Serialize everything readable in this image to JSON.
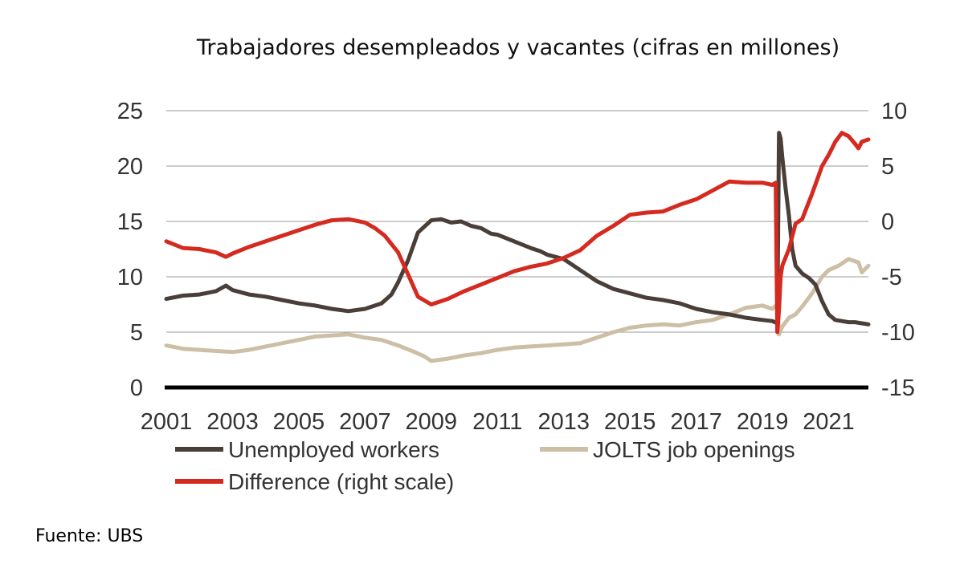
{
  "chart_data": {
    "type": "line",
    "title": "Trabajadores desempleados y vacantes (cifras en millones)",
    "x_ticks": [
      "2001",
      "2003",
      "2005",
      "2007",
      "2009",
      "2011",
      "2013",
      "2015",
      "2017",
      "2019",
      "2021"
    ],
    "xlim": [
      2001,
      2022.2
    ],
    "ylim_left": [
      0,
      25
    ],
    "y_ticks_left": [
      "0",
      "5",
      "10",
      "15",
      "20",
      "25"
    ],
    "ylim_right": [
      -15,
      10
    ],
    "y_ticks_right": [
      "-15",
      "-10",
      "-5",
      "0",
      "5",
      "10"
    ],
    "grid": true,
    "series": [
      {
        "name": "Unemployed workers",
        "axis": "left",
        "color": "#4a3f38",
        "x": [
          2001.0,
          2001.5,
          2002.0,
          2002.5,
          2002.8,
          2003.0,
          2003.5,
          2004.0,
          2004.5,
          2005.0,
          2005.5,
          2006.0,
          2006.5,
          2007.0,
          2007.5,
          2007.8,
          2008.0,
          2008.3,
          2008.6,
          2009.0,
          2009.3,
          2009.6,
          2009.9,
          2010.2,
          2010.5,
          2010.8,
          2011.0,
          2011.5,
          2012.0,
          2012.3,
          2012.5,
          2013.0,
          2013.5,
          2014.0,
          2014.5,
          2015.0,
          2015.5,
          2016.0,
          2016.5,
          2017.0,
          2017.5,
          2018.0,
          2018.5,
          2019.0,
          2019.3,
          2019.45,
          2019.5,
          2019.55,
          2019.6,
          2019.7,
          2019.8,
          2019.9,
          2020.0,
          2020.2,
          2020.4,
          2020.6,
          2020.8,
          2021.0,
          2021.2,
          2021.4,
          2021.6,
          2021.8,
          2022.0,
          2022.2
        ],
        "y": [
          8.0,
          8.3,
          8.4,
          8.7,
          9.2,
          8.8,
          8.4,
          8.2,
          7.9,
          7.6,
          7.4,
          7.1,
          6.9,
          7.1,
          7.6,
          8.4,
          9.5,
          11.5,
          14.0,
          15.1,
          15.2,
          14.9,
          15.0,
          14.6,
          14.4,
          13.9,
          13.8,
          13.2,
          12.6,
          12.3,
          12.0,
          11.6,
          10.6,
          9.6,
          8.9,
          8.5,
          8.1,
          7.9,
          7.6,
          7.1,
          6.8,
          6.6,
          6.3,
          6.1,
          6.0,
          5.8,
          23.0,
          22.5,
          20.8,
          18.0,
          15.5,
          12.5,
          11.0,
          10.3,
          9.9,
          9.3,
          7.8,
          6.6,
          6.1,
          6.0,
          5.9,
          5.9,
          5.8,
          5.7
        ]
      },
      {
        "name": "JOLTS job openings",
        "axis": "left",
        "color": "#cdbfa5",
        "x": [
          2001.0,
          2001.5,
          2002.0,
          2002.5,
          2003.0,
          2003.5,
          2004.0,
          2004.5,
          2005.0,
          2005.5,
          2006.0,
          2006.5,
          2007.0,
          2007.5,
          2008.0,
          2008.5,
          2008.8,
          2009.0,
          2009.5,
          2010.0,
          2010.5,
          2011.0,
          2011.5,
          2012.0,
          2012.5,
          2013.0,
          2013.5,
          2014.0,
          2014.5,
          2015.0,
          2015.5,
          2016.0,
          2016.5,
          2017.0,
          2017.5,
          2018.0,
          2018.5,
          2019.0,
          2019.3,
          2019.45,
          2019.5,
          2019.6,
          2019.8,
          2020.0,
          2020.2,
          2020.5,
          2020.8,
          2021.0,
          2021.3,
          2021.6,
          2021.9,
          2022.0,
          2022.2
        ],
        "y": [
          3.8,
          3.5,
          3.4,
          3.3,
          3.2,
          3.4,
          3.7,
          4.0,
          4.3,
          4.6,
          4.7,
          4.8,
          4.5,
          4.3,
          3.8,
          3.2,
          2.8,
          2.4,
          2.6,
          2.9,
          3.1,
          3.4,
          3.6,
          3.7,
          3.8,
          3.9,
          4.0,
          4.5,
          5.0,
          5.4,
          5.6,
          5.7,
          5.6,
          5.9,
          6.1,
          6.6,
          7.2,
          7.4,
          7.1,
          7.5,
          4.8,
          5.5,
          6.3,
          6.6,
          7.3,
          8.5,
          10.0,
          10.6,
          11.0,
          11.6,
          11.3,
          10.4,
          11.0
        ]
      },
      {
        "name": "Difference (right scale)",
        "axis": "right",
        "color": "#d42a20",
        "x": [
          2001.0,
          2001.5,
          2002.0,
          2002.5,
          2002.8,
          2003.0,
          2003.5,
          2004.0,
          2004.5,
          2005.0,
          2005.5,
          2006.0,
          2006.5,
          2007.0,
          2007.3,
          2007.6,
          2008.0,
          2008.3,
          2008.6,
          2009.0,
          2009.5,
          2010.0,
          2010.5,
          2011.0,
          2011.5,
          2012.0,
          2012.5,
          2013.0,
          2013.5,
          2014.0,
          2014.5,
          2015.0,
          2015.5,
          2016.0,
          2016.5,
          2017.0,
          2017.5,
          2018.0,
          2018.5,
          2019.0,
          2019.3,
          2019.4,
          2019.45,
          2019.5,
          2019.55,
          2019.6,
          2019.8,
          2020.0,
          2020.2,
          2020.5,
          2020.8,
          2021.0,
          2021.2,
          2021.4,
          2021.6,
          2021.8,
          2021.9,
          2022.0,
          2022.2
        ],
        "y": [
          -1.8,
          -2.4,
          -2.5,
          -2.8,
          -3.2,
          -2.9,
          -2.3,
          -1.8,
          -1.3,
          -0.8,
          -0.3,
          0.1,
          0.2,
          -0.1,
          -0.6,
          -1.3,
          -2.8,
          -4.8,
          -6.8,
          -7.5,
          -7.0,
          -6.3,
          -5.7,
          -5.1,
          -4.5,
          -4.1,
          -3.8,
          -3.3,
          -2.6,
          -1.3,
          -0.4,
          0.6,
          0.8,
          0.9,
          1.5,
          2.0,
          2.8,
          3.6,
          3.5,
          3.5,
          3.3,
          3.5,
          -10.0,
          -8.0,
          -5.0,
          -4.0,
          -2.5,
          -0.2,
          0.2,
          2.5,
          5.0,
          6.0,
          7.2,
          8.0,
          7.7,
          7.0,
          6.6,
          7.2,
          7.4
        ]
      }
    ],
    "legend": [
      {
        "label": "Unemployed workers",
        "series": 0
      },
      {
        "label": "JOLTS job openings",
        "series": 1
      },
      {
        "label": "Difference (right scale)",
        "series": 2
      }
    ]
  },
  "source": "Fuente: UBS"
}
